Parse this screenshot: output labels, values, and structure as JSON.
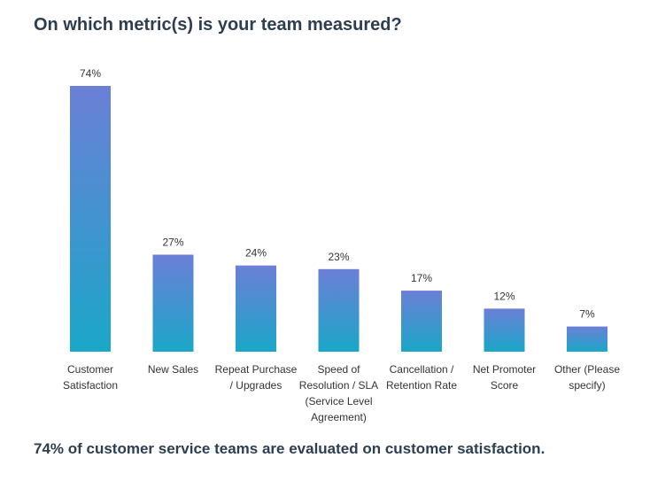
{
  "title": "On which metric(s) is your team measured?",
  "caption": "74% of customer service teams are evaluated on customer satisfaction.",
  "colors": {
    "gradient_top": "#6b7fd6",
    "gradient_bottom": "#1aa7c8",
    "text": "#2d3e50"
  },
  "chart_data": {
    "type": "bar",
    "title": "On which metric(s) is your team measured?",
    "xlabel": "",
    "ylabel": "",
    "ylim": [
      0,
      74
    ],
    "grid": false,
    "categories": [
      [
        "Customer",
        "Satisfaction"
      ],
      [
        "New Sales"
      ],
      [
        "Repeat Purchase",
        "/ Upgrades"
      ],
      [
        "Speed of",
        "Resolution / SLA",
        "(Service Level",
        "Agreement)"
      ],
      [
        "Cancellation /",
        "Retention Rate"
      ],
      [
        "Net Promoter",
        "Score"
      ],
      [
        "Other (Please",
        "specify)"
      ]
    ],
    "values": [
      74,
      27,
      24,
      23,
      17,
      12,
      7
    ],
    "value_labels": [
      "74%",
      "27%",
      "24%",
      "23%",
      "17%",
      "12%",
      "7%"
    ]
  }
}
